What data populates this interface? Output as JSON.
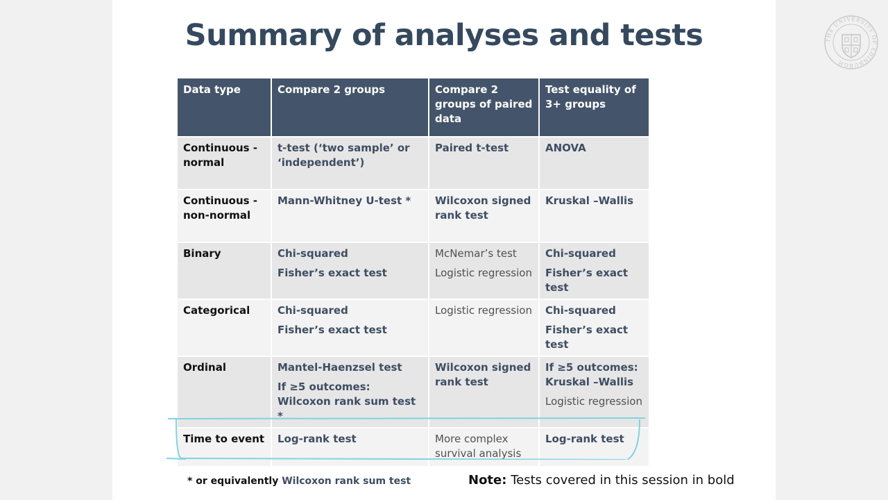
{
  "slide": {
    "title": "Summary of analyses and tests",
    "logo_ring_text": "THE UNIVERSITY OF EDINBURGH"
  },
  "table": {
    "headers": [
      "Data type",
      "Compare 2 groups",
      "Compare 2 groups of paired data",
      "Test equality of 3+ groups"
    ],
    "rows": [
      {
        "data_type": "Continuous - normal",
        "compare2": [
          {
            "text": "t-test (‘two sample’ or ‘independent’)",
            "bold": true
          }
        ],
        "paired": [
          {
            "text": "Paired t-test",
            "bold": true
          }
        ],
        "three_plus": [
          {
            "text": "ANOVA",
            "bold": true
          }
        ]
      },
      {
        "data_type": "Continuous - non-normal",
        "compare2": [
          {
            "text": "Mann-Whitney U-test *",
            "bold": true
          }
        ],
        "paired": [
          {
            "text": "Wilcoxon signed rank test",
            "bold": true
          }
        ],
        "three_plus": [
          {
            "text": "Kruskal –Wallis",
            "bold": true
          }
        ]
      },
      {
        "data_type": "Binary",
        "compare2": [
          {
            "text": "Chi-squared",
            "bold": true
          },
          {
            "text": "Fisher’s exact test",
            "bold": true
          }
        ],
        "paired": [
          {
            "text": "McNemar’s test",
            "bold": false
          },
          {
            "text": "Logistic regression",
            "bold": false
          }
        ],
        "three_plus": [
          {
            "text": "Chi-squared",
            "bold": true
          },
          {
            "text": "Fisher’s exact test",
            "bold": true
          }
        ]
      },
      {
        "data_type": "Categorical",
        "compare2": [
          {
            "text": "Chi-squared",
            "bold": true
          },
          {
            "text": "Fisher’s exact test",
            "bold": true
          }
        ],
        "paired": [
          {
            "text": "Logistic regression",
            "bold": false
          }
        ],
        "three_plus": [
          {
            "text": "Chi-squared",
            "bold": true
          },
          {
            "text": "Fisher’s exact test",
            "bold": true
          }
        ]
      },
      {
        "data_type": "Ordinal",
        "compare2": [
          {
            "text": "Mantel-Haenzsel test",
            "bold": true
          },
          {
            "text": "If ≥5 outcomes: Wilcoxon rank sum test *",
            "bold": true
          }
        ],
        "paired": [
          {
            "text": "Wilcoxon signed rank test",
            "bold": true
          }
        ],
        "three_plus": [
          {
            "text": "If ≥5 outcomes: Kruskal –Wallis",
            "bold": true
          },
          {
            "text": "Logistic regression",
            "bold": false
          }
        ]
      },
      {
        "data_type": "Time to event",
        "compare2": [
          {
            "text": "Log-rank test",
            "bold": true
          }
        ],
        "paired": [
          {
            "text": "More complex survival analysis",
            "bold": false
          }
        ],
        "three_plus": [
          {
            "text": "Log-rank test",
            "bold": true
          }
        ]
      }
    ]
  },
  "footnote": {
    "prefix": "* or equivalently",
    "highlight": "Wilcoxon rank sum test"
  },
  "note": {
    "label": "Note:",
    "text": "Tests covered in this session in bold"
  },
  "colors": {
    "header_bg": "#44546a",
    "title": "#34495e",
    "highlight_stroke": "#7fd3e0"
  }
}
